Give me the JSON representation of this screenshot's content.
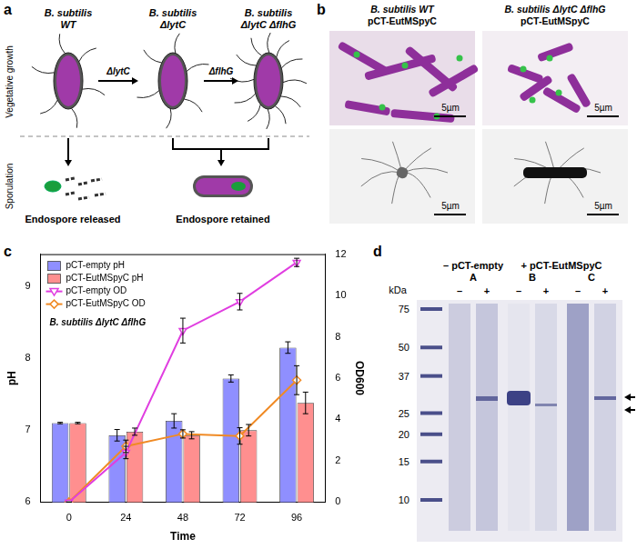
{
  "panel_labels": [
    "a",
    "b",
    "c",
    "d"
  ],
  "panel_a": {
    "strains": [
      [
        "B. subtilis",
        "WT"
      ],
      [
        "B. subtilis",
        "ΔlytC"
      ],
      [
        "B. subtilis",
        "ΔlytC ΔflhG"
      ]
    ],
    "arrow_labels": [
      "ΔlytC",
      "ΔflhG"
    ],
    "row_labels": [
      "Vegetative growth",
      "Sporulation"
    ],
    "outcomes": [
      "Endospore released",
      "Endospore retained"
    ]
  },
  "panel_b": {
    "columns": [
      [
        "B. subtilis WT",
        "pCT-EutMSpyC"
      ],
      [
        "B. subtilis ΔlytC ΔflhG",
        "pCT-EutMSpyC"
      ]
    ],
    "scale_bars": [
      "5µm",
      "5µm",
      "5µm",
      "5µm"
    ]
  },
  "chart_data": {
    "type": "bar",
    "categories": [
      0,
      24,
      48,
      72,
      96
    ],
    "x_label": "Time",
    "y_label": "pH",
    "y2_label": "OD600",
    "ylim": [
      6,
      9.45
    ],
    "yticks": [
      6,
      7,
      8,
      9
    ],
    "y2lim": [
      0,
      12
    ],
    "y2ticks": [
      0,
      2,
      4,
      6,
      8,
      10,
      12
    ],
    "grid": false,
    "legend": "upper left",
    "annotations": [
      "B. subtilis ΔlytC ΔflhG"
    ],
    "series": [
      {
        "name": "pCT-empty pH",
        "type": "bar",
        "color": "#8f8fff",
        "values": [
          7.1,
          6.93,
          7.13,
          7.72,
          8.15
        ],
        "errors": [
          0.01,
          0.08,
          0.1,
          0.05,
          0.08
        ]
      },
      {
        "name": "pCT-EutMSpyC pH",
        "type": "bar",
        "color": "#ff8f8f",
        "values": [
          7.1,
          6.98,
          6.93,
          7.0,
          7.38
        ],
        "errors": [
          0.01,
          0.05,
          0.05,
          0.08,
          0.15
        ]
      },
      {
        "name": "pCT-empty OD",
        "type": "line",
        "axis": "y2",
        "color": "#e03ee0",
        "marker": "triangle_down",
        "values": [
          0,
          2.4,
          8.3,
          9.7,
          11.6
        ],
        "errors": [
          0,
          0.3,
          0.6,
          0.4,
          0.2
        ]
      },
      {
        "name": "pCT-EutMSpyC OD",
        "type": "line",
        "axis": "y2",
        "color": "#f08a24",
        "marker": "diamond",
        "values": [
          0,
          2.7,
          3.3,
          3.2,
          5.9
        ],
        "errors": [
          0,
          0.3,
          0.2,
          0.4,
          0.7
        ]
      }
    ]
  },
  "panel_d": {
    "group_labels": [
      "– pCT-empty",
      "+ pCT-EutMSpyC"
    ],
    "lanes": [
      "A",
      "B",
      "C"
    ],
    "lane_signs": [
      "–",
      "+",
      "–",
      "+",
      "–",
      "+"
    ],
    "unit": "kDa",
    "markers": [
      75,
      50,
      37,
      25,
      20,
      15,
      10
    ]
  }
}
